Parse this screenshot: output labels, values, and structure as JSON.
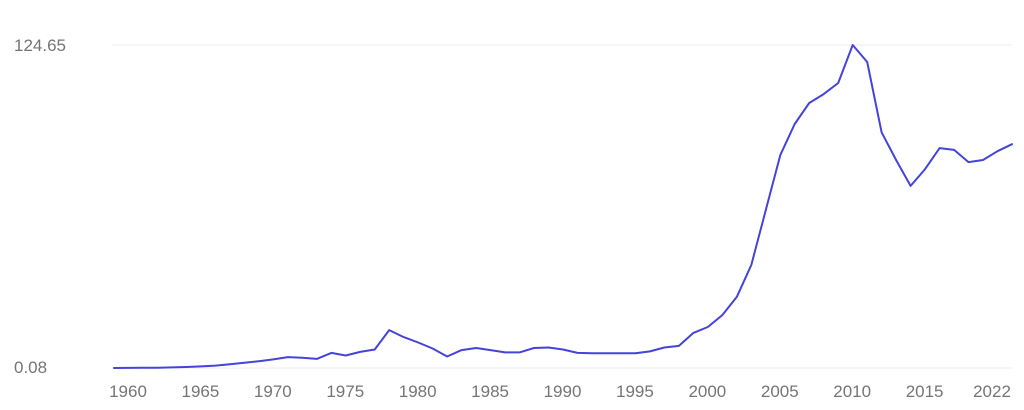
{
  "chart_data": {
    "type": "line",
    "title": "",
    "xlabel": "",
    "ylabel": "",
    "legend": "none",
    "grid": {
      "horizontal_lines_at_values": [
        124.65,
        0.08
      ],
      "color": "#ededed"
    },
    "colors": {
      "line": "#4543d9",
      "tick_text": "#757575",
      "background": "#ffffff"
    },
    "y_axis": {
      "min": 0.08,
      "max": 124.65,
      "min_label": "0.08",
      "max_label": "124.65"
    },
    "x_axis": {
      "range": [
        1960,
        2022
      ],
      "tick_labels": [
        "1960",
        "1965",
        "1970",
        "1975",
        "1980",
        "1985",
        "1990",
        "1995",
        "2000",
        "2005",
        "2010",
        "2015",
        "2022"
      ]
    },
    "years": [
      1960,
      1961,
      1962,
      1963,
      1964,
      1965,
      1966,
      1967,
      1968,
      1969,
      1970,
      1971,
      1972,
      1973,
      1974,
      1975,
      1976,
      1977,
      1978,
      1979,
      1980,
      1981,
      1982,
      1983,
      1984,
      1985,
      1986,
      1987,
      1988,
      1989,
      1990,
      1991,
      1992,
      1993,
      1994,
      1995,
      1996,
      1997,
      1998,
      1999,
      2000,
      2001,
      2002,
      2003,
      2004,
      2005,
      2006,
      2007,
      2008,
      2009,
      2010,
      2011,
      2012,
      2013,
      2014,
      2015,
      2016,
      2017,
      2018,
      2019,
      2020,
      2021,
      2022
    ],
    "series": [
      {
        "name": "value",
        "values": [
          0.08,
          0.1,
          0.15,
          0.2,
          0.3,
          0.45,
          0.7,
          1.0,
          1.5,
          2.1,
          2.7,
          3.4,
          4.3,
          4.0,
          3.6,
          5.9,
          4.9,
          6.3,
          7.2,
          14.7,
          12.0,
          9.9,
          7.6,
          4.5,
          7.0,
          7.8,
          7.0,
          6.1,
          6.1,
          7.8,
          8.0,
          7.2,
          5.9,
          5.8,
          5.8,
          5.8,
          5.8,
          6.5,
          8.0,
          8.6,
          13.6,
          15.9,
          20.5,
          27.5,
          39.8,
          61.0,
          82.2,
          94.2,
          102.3,
          105.7,
          110.0,
          124.65,
          118.1,
          91.0,
          80.3,
          70.3,
          76.8,
          84.9,
          84.2,
          79.5,
          80.3,
          83.7,
          86.4
        ]
      }
    ]
  }
}
